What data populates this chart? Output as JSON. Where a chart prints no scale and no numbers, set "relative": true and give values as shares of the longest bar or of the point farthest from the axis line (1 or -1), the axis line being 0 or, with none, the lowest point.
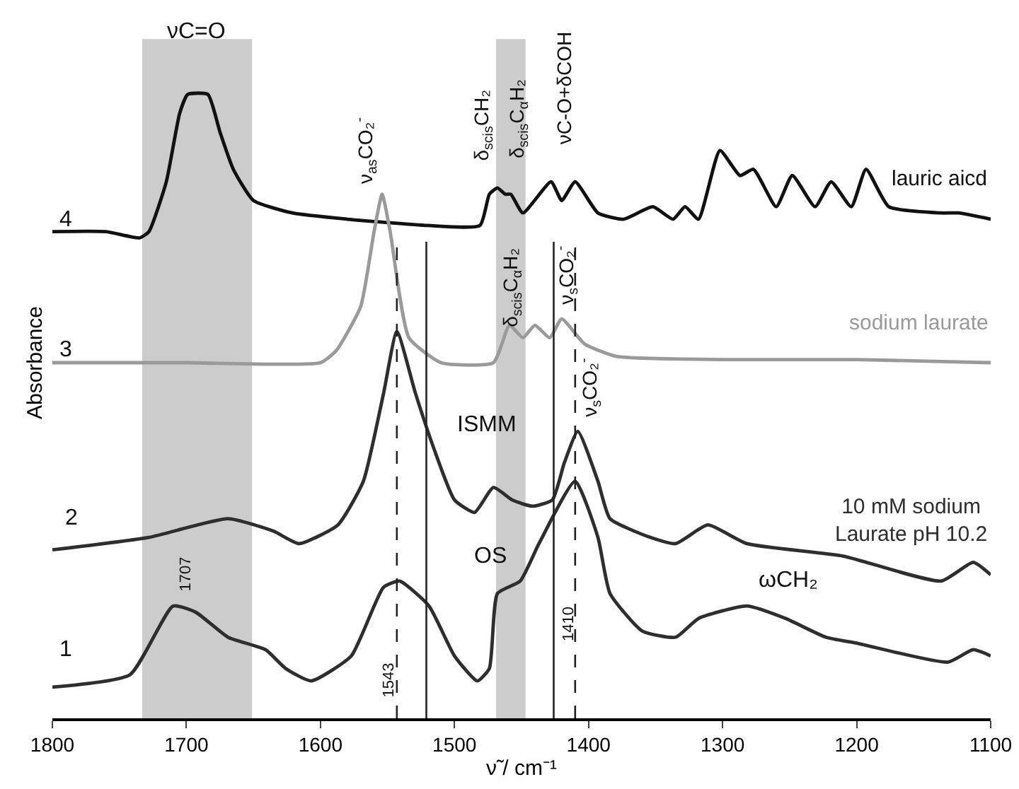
{
  "chart_data": {
    "type": "line",
    "relative": true,
    "xlabel": "ν̃ / cm⁻¹",
    "ylabel": "Absorbance",
    "xlim": [
      1800,
      1100
    ],
    "xticks": [
      1800,
      1700,
      1600,
      1500,
      1400,
      1300,
      1200,
      1100
    ],
    "grid": false,
    "legend": false,
    "series": [
      {
        "name": "lauric aicd",
        "color": "#111111",
        "x": [
          1800,
          1760,
          1735,
          1728,
          1715,
          1705,
          1699,
          1684,
          1675,
          1665,
          1650,
          1621,
          1580,
          1520,
          1481,
          1474,
          1468,
          1462,
          1458,
          1449,
          1428,
          1420,
          1410,
          1393,
          1374,
          1352,
          1337,
          1328,
          1318,
          1302,
          1287,
          1277,
          1260,
          1248,
          1231,
          1219,
          1204,
          1193,
          1176,
          1137,
          1124,
          1100
        ],
        "values": [
          0.78,
          0.78,
          0.77,
          0.78,
          0.86,
          0.97,
          1,
          1,
          0.94,
          0.88,
          0.83,
          0.81,
          0.8,
          0.79,
          0.79,
          0.84,
          0.85,
          0.84,
          0.84,
          0.81,
          0.86,
          0.83,
          0.86,
          0.81,
          0.8,
          0.82,
          0.8,
          0.82,
          0.8,
          0.91,
          0.87,
          0.88,
          0.82,
          0.87,
          0.82,
          0.86,
          0.82,
          0.88,
          0.82,
          0.81,
          0.81,
          0.8
        ]
      },
      {
        "name": "sodium laurate",
        "color": "#9a9a9a",
        "x": [
          1800,
          1700,
          1600,
          1588,
          1570,
          1560,
          1554,
          1548,
          1534,
          1510,
          1471,
          1459,
          1449,
          1440,
          1429,
          1420,
          1403,
          1379,
          1300,
          1200,
          1100
        ],
        "values": [
          0.57,
          0.57,
          0.57,
          0.59,
          0.66,
          0.78,
          0.84,
          0.78,
          0.61,
          0.57,
          0.57,
          0.63,
          0.61,
          0.63,
          0.61,
          0.64,
          0.6,
          0.58,
          0.575,
          0.575,
          0.57
        ]
      },
      {
        "name": "10 mM sodium\nLaurate pH 10.2",
        "color": "#2e2e2e",
        "x": [
          1800,
          1728,
          1669,
          1635,
          1616,
          1587,
          1568,
          1553,
          1543,
          1529,
          1515,
          1500,
          1485,
          1471,
          1457,
          1442,
          1427,
          1418,
          1408,
          1393,
          1384,
          1354,
          1335,
          1311,
          1282,
          1210,
          1137,
          1113,
          1100
        ],
        "values": [
          0.27,
          0.29,
          0.32,
          0.3,
          0.28,
          0.31,
          0.38,
          0.52,
          0.62,
          0.52,
          0.43,
          0.35,
          0.33,
          0.37,
          0.35,
          0.34,
          0.35,
          0.41,
          0.46,
          0.38,
          0.32,
          0.29,
          0.28,
          0.31,
          0.28,
          0.26,
          0.22,
          0.25,
          0.23
        ]
      },
      {
        "color": "#2e2e2e",
        "x": [
          1800,
          1742,
          1710,
          1693,
          1669,
          1641,
          1626,
          1607,
          1577,
          1553,
          1541,
          1519,
          1500,
          1483,
          1474,
          1468,
          1451,
          1437,
          1410,
          1393,
          1384,
          1360,
          1335,
          1318,
          1282,
          1253,
          1223,
          1199,
          1132,
          1113,
          1100
        ],
        "values": [
          0.05,
          0.07,
          0.18,
          0.17,
          0.13,
          0.11,
          0.08,
          0.06,
          0.1,
          0.21,
          0.22,
          0.18,
          0.1,
          0.06,
          0.08,
          0.2,
          0.22,
          0.28,
          0.38,
          0.29,
          0.2,
          0.14,
          0.13,
          0.16,
          0.18,
          0.16,
          0.13,
          0.12,
          0.09,
          0.11,
          0.1
        ]
      }
    ],
    "bands": [
      {
        "axis": "x",
        "from": 1733,
        "to": 1651,
        "color": "#cccccc"
      },
      {
        "axis": "x",
        "from": 1469,
        "to": 1447,
        "color": "#cccccc"
      }
    ],
    "ref_lines": [
      {
        "axis": "x",
        "value": 1543,
        "line_style": "dashed",
        "color": "#222222"
      },
      {
        "axis": "x",
        "value": 1410,
        "line_style": "dashed",
        "color": "#222222"
      },
      {
        "axis": "x",
        "value": 1521,
        "line_style": "solid",
        "color": "#222222"
      },
      {
        "axis": "x",
        "value": 1426,
        "line_style": "solid",
        "color": "#222222"
      }
    ],
    "annotations": [
      "νC=O",
      "ν$_{as}$CO₂$^{-}$",
      "δ$_{scis}$CH₂",
      "δ$_{scis}$C$_{α}$H₂",
      "νC-O+δCOH",
      "δ$_{scis}$C$_{α}$H₂",
      "ν$_{s}$CO₂$^{-}$",
      "ν$_{s}$CO₂$^{-}$",
      "ISMM",
      "OS",
      "ωCH₂",
      "1707",
      "1543",
      "1410",
      "4",
      "3",
      "2",
      "1"
    ]
  }
}
